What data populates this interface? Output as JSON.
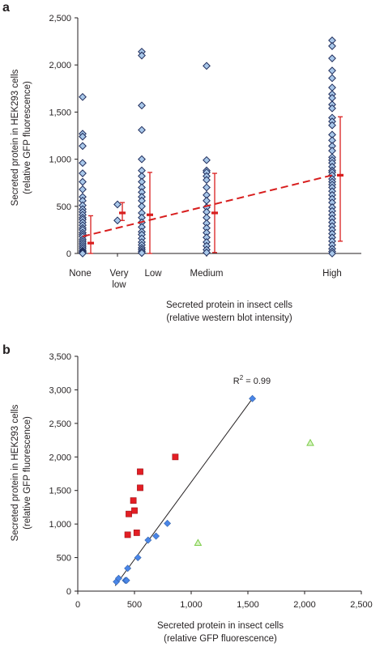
{
  "chart_data": [
    {
      "panel_label": "a",
      "type": "scatter",
      "ylabel_lines": [
        "Secreted protein in HEK293 cells",
        "(relative GFP fluorescence)"
      ],
      "xlabel_lines": [
        "Secreted protein in insect cells",
        "(relative western blot intensity)"
      ],
      "ylim": [
        0,
        2500
      ],
      "yticks": [
        0,
        500,
        1000,
        1500,
        2000,
        2500
      ],
      "ytick_labels": [
        "0",
        "500",
        "1,000",
        "1,500",
        "2,000",
        "2,500"
      ],
      "categories": [
        {
          "label_lines": [
            "None"
          ],
          "x": 0
        },
        {
          "label_lines": [
            "Very",
            "low"
          ],
          "x": 1
        },
        {
          "label_lines": [
            "Low"
          ],
          "x": 2
        },
        {
          "label_lines": [
            "Medium"
          ],
          "x": 4
        },
        {
          "label_lines": [
            "High"
          ],
          "x": 8
        }
      ],
      "points": {
        "None": [
          1660,
          1270,
          1240,
          1140,
          960,
          850,
          760,
          680,
          600,
          560,
          510,
          470,
          440,
          410,
          380,
          360,
          330,
          300,
          270,
          250,
          220,
          200,
          180,
          150,
          130,
          110,
          90,
          70,
          50,
          30,
          20,
          10,
          0
        ],
        "Very low": [
          520,
          350
        ],
        "Low": [
          2140,
          2100,
          1570,
          1310,
          1000,
          880,
          820,
          760,
          700,
          650,
          600,
          560,
          500,
          430,
          380,
          330,
          280,
          230,
          200,
          160,
          120,
          90,
          60,
          40,
          20,
          5
        ],
        "Medium": [
          1990,
          990,
          880,
          860,
          820,
          780,
          700,
          620,
          560,
          490,
          440,
          380,
          320,
          270,
          220,
          170,
          120,
          80,
          40,
          10
        ],
        "High": [
          2260,
          2200,
          2070,
          1940,
          1860,
          1760,
          1690,
          1650,
          1580,
          1540,
          1440,
          1400,
          1360,
          1260,
          1200,
          1140,
          1090,
          1020,
          990,
          960,
          920,
          880,
          860,
          830,
          790,
          760,
          730,
          700,
          660,
          620,
          580,
          540,
          490,
          450,
          410,
          370,
          330,
          290,
          250,
          210,
          170,
          130,
          90,
          50,
          20,
          0
        ]
      },
      "mean_sd": [
        {
          "category": "None",
          "mean": 110,
          "low": 0,
          "high": 400
        },
        {
          "category": "Very low",
          "mean": 430,
          "low": 350,
          "high": 540
        },
        {
          "category": "Low",
          "mean": 410,
          "low": 0,
          "high": 860
        },
        {
          "category": "Medium",
          "mean": 430,
          "low": 10,
          "high": 850
        },
        {
          "category": "High",
          "mean": 830,
          "low": 130,
          "high": 1450
        }
      ],
      "trend_line": {
        "x": [
          0,
          8
        ],
        "y": [
          180,
          830
        ]
      },
      "colors": {
        "marker_fill": "#a9c8ea",
        "marker_edge": "#1f2d5c",
        "error": "#d81e1e"
      }
    },
    {
      "panel_label": "b",
      "type": "scatter",
      "ylabel_lines": [
        "Secreted protein in HEK293 cells",
        "(relative GFP fluorescence)"
      ],
      "xlabel_lines": [
        "Secreted protein in insect cells",
        "(relative GFP fluorescence)"
      ],
      "xlim": [
        0,
        2500
      ],
      "ylim": [
        0,
        3500
      ],
      "xticks": [
        0,
        500,
        1000,
        1500,
        2000,
        2500
      ],
      "xtick_labels": [
        "0",
        "500",
        "1,000",
        "1,500",
        "2,000",
        "2,500"
      ],
      "yticks": [
        0,
        500,
        1000,
        1500,
        2000,
        2500,
        3000,
        3500
      ],
      "ytick_labels": [
        "0",
        "500",
        "1,000",
        "1,500",
        "2,000",
        "2,500",
        "3,000",
        "3,500"
      ],
      "series": [
        {
          "marker": "diamond",
          "color": "#4a86e8",
          "x": [
            340,
            360,
            420,
            430,
            440,
            530,
            620,
            690,
            790,
            1540
          ],
          "y": [
            140,
            190,
            160,
            160,
            340,
            500,
            760,
            820,
            1010,
            2870
          ]
        },
        {
          "marker": "square",
          "color": "#e31e24",
          "x": [
            440,
            450,
            490,
            500,
            520,
            550,
            550,
            860
          ],
          "y": [
            840,
            1150,
            1350,
            1200,
            870,
            1780,
            1540,
            2000
          ]
        },
        {
          "marker": "triangle",
          "color": "#7ccd4a",
          "x": [
            1060,
            2050
          ],
          "y": [
            720,
            2210
          ]
        }
      ],
      "fit_line": {
        "x": [
          330,
          1540
        ],
        "y": [
          80,
          2870
        ]
      },
      "annotation": {
        "prefix": "R",
        "superscript": "2",
        "suffix": " = 0.99",
        "x": 1370,
        "y": 3090
      }
    }
  ]
}
